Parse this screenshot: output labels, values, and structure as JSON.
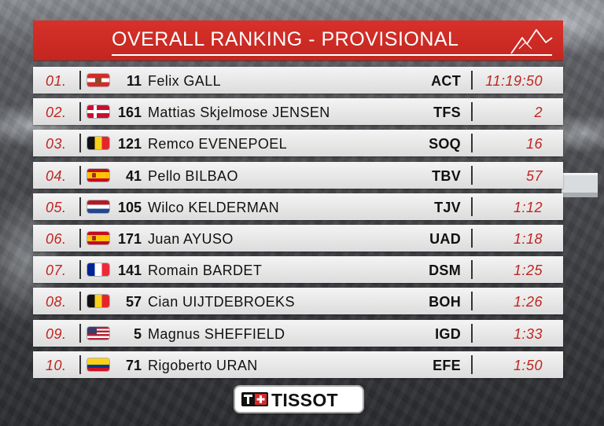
{
  "title": "OVERALL RANKING - PROVISIONAL",
  "colors": {
    "accent": "#c3261f",
    "rank_text": "#c0251f",
    "row_bg": "#e8e8e8"
  },
  "rows": [
    {
      "rank": "01.",
      "flag": "AUT",
      "bib": "11",
      "rider": "Felix GALL",
      "team": "ACT",
      "gap": "11:19:50"
    },
    {
      "rank": "02.",
      "flag": "DEN",
      "bib": "161",
      "rider": "Mattias Skjelmose JENSEN",
      "team": "TFS",
      "gap": "2"
    },
    {
      "rank": "03.",
      "flag": "BEL",
      "bib": "121",
      "rider": "Remco EVENEPOEL",
      "team": "SOQ",
      "gap": "16"
    },
    {
      "rank": "04.",
      "flag": "ESP",
      "bib": "41",
      "rider": "Pello BILBAO",
      "team": "TBV",
      "gap": "57"
    },
    {
      "rank": "05.",
      "flag": "NED",
      "bib": "105",
      "rider": "Wilco KELDERMAN",
      "team": "TJV",
      "gap": "1:12"
    },
    {
      "rank": "06.",
      "flag": "ESP",
      "bib": "171",
      "rider": "Juan AYUSO",
      "team": "UAD",
      "gap": "1:18"
    },
    {
      "rank": "07.",
      "flag": "FRA",
      "bib": "141",
      "rider": "Romain BARDET",
      "team": "DSM",
      "gap": "1:25"
    },
    {
      "rank": "08.",
      "flag": "BEL",
      "bib": "57",
      "rider": "Cian UIJTDEBROEKS",
      "team": "BOH",
      "gap": "1:26"
    },
    {
      "rank": "09.",
      "flag": "USA",
      "bib": "5",
      "rider": "Magnus SHEFFIELD",
      "team": "IGD",
      "gap": "1:33"
    },
    {
      "rank": "10.",
      "flag": "COL",
      "bib": "71",
      "rider": "Rigoberto URAN",
      "team": "EFE",
      "gap": "1:50"
    }
  ],
  "sponsor": {
    "name": "TISSOT",
    "icon": "tissot-cross-icon"
  }
}
